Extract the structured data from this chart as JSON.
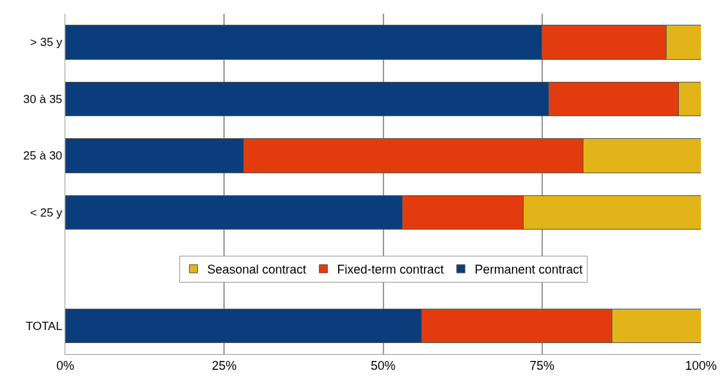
{
  "chart_data": {
    "type": "bar",
    "orientation": "horizontal",
    "stacked": true,
    "categories": [
      "> 35 y",
      "30 à 35",
      "25 à 30",
      "< 25 y",
      null,
      "TOTAL"
    ],
    "series": [
      {
        "name": "Permanent contract",
        "color": "#0b3d7c",
        "values": [
          75,
          76,
          28,
          53,
          null,
          56
        ]
      },
      {
        "name": "Fixed-term contract",
        "color": "#e23c0e",
        "values": [
          19.5,
          20.5,
          53.5,
          19,
          null,
          30
        ]
      },
      {
        "name": "Seasonal contract",
        "color": "#e2b41a",
        "values": [
          5.5,
          3.5,
          18.5,
          28,
          null,
          14
        ]
      }
    ],
    "xlim": [
      0,
      100
    ],
    "xticks": [
      {
        "value": 0,
        "label": "0%"
      },
      {
        "value": 25,
        "label": "25%"
      },
      {
        "value": 50,
        "label": "50%"
      },
      {
        "value": 75,
        "label": "75%"
      },
      {
        "value": 100,
        "label": "100%"
      }
    ],
    "grid": "x",
    "legend": "bottom"
  }
}
